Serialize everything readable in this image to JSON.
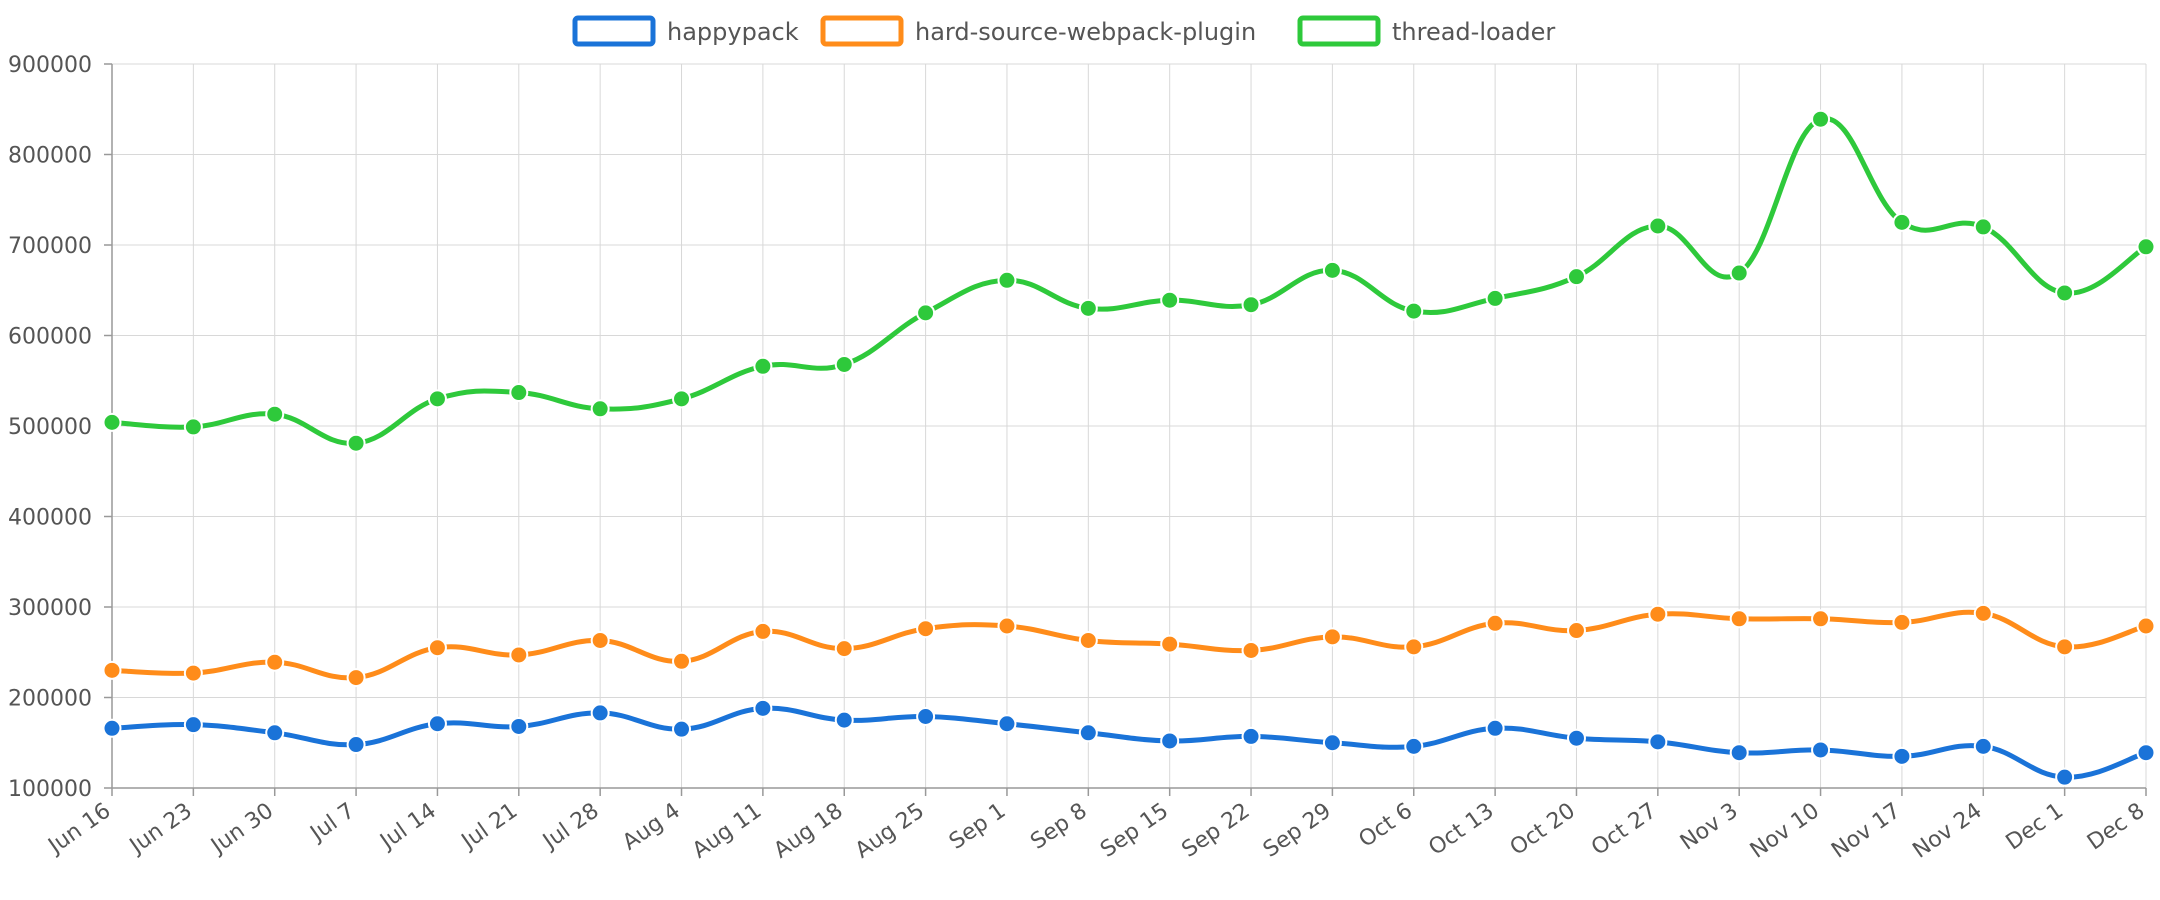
{
  "chart_data": {
    "type": "line",
    "title": "",
    "xlabel": "",
    "ylabel": "",
    "legend_position": "top-center",
    "grid": true,
    "ylim": [
      100000,
      900000
    ],
    "yticks": [
      "100000",
      "200000",
      "300000",
      "400000",
      "500000",
      "600000",
      "700000",
      "800000",
      "900000"
    ],
    "categories": [
      "Jun 16",
      "Jun 23",
      "Jun 30",
      "Jul 7",
      "Jul 14",
      "Jul 21",
      "Jul 28",
      "Aug 4",
      "Aug 11",
      "Aug 18",
      "Aug 25",
      "Sep 1",
      "Sep 8",
      "Sep 15",
      "Sep 22",
      "Sep 29",
      "Oct 6",
      "Oct 13",
      "Oct 20",
      "Oct 27",
      "Nov 3",
      "Nov 10",
      "Nov 17",
      "Nov 24",
      "Dec 1",
      "Dec 8"
    ],
    "series": [
      {
        "name": "happypack",
        "color": "#1a73d8",
        "values": [
          166000,
          170000,
          161000,
          148000,
          171000,
          168000,
          183000,
          165000,
          188000,
          175000,
          179000,
          171000,
          161000,
          152000,
          157000,
          150000,
          146000,
          166000,
          155000,
          151000,
          139000,
          142000,
          135000,
          146000,
          112000,
          139000
        ]
      },
      {
        "name": "hard-source-webpack-plugin",
        "color": "#ff8c1a",
        "values": [
          230000,
          227000,
          239000,
          222000,
          255000,
          247000,
          263000,
          240000,
          273000,
          254000,
          276000,
          279000,
          263000,
          259000,
          252000,
          267000,
          256000,
          282000,
          274000,
          292000,
          287000,
          287000,
          283000,
          293000,
          256000,
          279000
        ]
      },
      {
        "name": "thread-loader",
        "color": "#2ec93b",
        "values": [
          504000,
          499000,
          513000,
          481000,
          530000,
          537000,
          519000,
          530000,
          566000,
          568000,
          625000,
          661000,
          630000,
          639000,
          634000,
          672000,
          627000,
          641000,
          665000,
          721000,
          669000,
          839000,
          725000,
          720000,
          647000,
          698000
        ]
      }
    ]
  }
}
